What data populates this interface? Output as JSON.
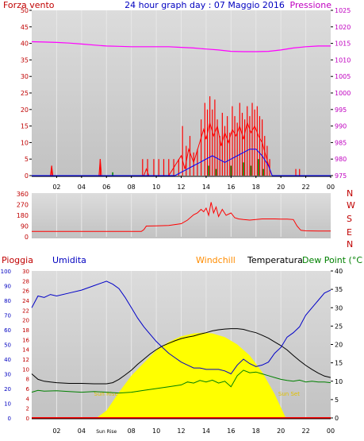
{
  "header": {
    "left_label": "Forza vento",
    "title": "24 hour graph day : 07 Maggio 2016",
    "right_label": "Pressione"
  },
  "colors": {
    "plot_bg_top": "#d8d8d8",
    "plot_bg_bottom": "#c4c4c4",
    "wind": "#ff0000",
    "gust_bar": "#ff0000",
    "wind_avg": "#0000ff",
    "wind_low": "#008000",
    "pressure": "#ff00ff",
    "direction": "#ff0000",
    "humidity": "#0000c8",
    "temperature": "#000000",
    "dew_point": "#008000",
    "sun": "#ffff00",
    "rain": "#ff0000",
    "windchill": "#ff8c00",
    "axis_red": "#c00000",
    "axis_blue": "#0000c0",
    "axis_black": "#000000",
    "title_blue": "#0000c0"
  },
  "x_axis": {
    "ticks": [
      "02",
      "04",
      "06",
      "08",
      "10",
      "12",
      "14",
      "16",
      "18",
      "20",
      "22",
      "00"
    ],
    "bottom_ticks": [
      "02",
      "04",
      "Sun Rise",
      "08",
      "10",
      "12",
      "14",
      "16",
      "18",
      "20",
      "22",
      "00"
    ],
    "range_hours": [
      0,
      24
    ]
  },
  "chart_data": [
    {
      "type": "bar",
      "name": "wind-panel",
      "title": "24 hour graph day : 07 Maggio 2016",
      "left_axis_label": "Forza vento",
      "right_axis_label": "Pressione",
      "ylim": [
        0,
        50
      ],
      "yticks": [
        0,
        5,
        10,
        15,
        20,
        25,
        30,
        35,
        40,
        45,
        50
      ],
      "y2lim": [
        975,
        1025
      ],
      "y2ticks": [
        975,
        980,
        985,
        990,
        995,
        1000,
        1005,
        1010,
        1015,
        1020,
        1025
      ],
      "gust_bars": [
        {
          "h": 1.6,
          "v": 3
        },
        {
          "h": 5.5,
          "v": 5
        },
        {
          "h": 8.9,
          "v": 5
        },
        {
          "h": 9.3,
          "v": 5
        },
        {
          "h": 9.8,
          "v": 5
        },
        {
          "h": 10.2,
          "v": 5
        },
        {
          "h": 10.6,
          "v": 5
        },
        {
          "h": 11.0,
          "v": 5
        },
        {
          "h": 11.4,
          "v": 5
        },
        {
          "h": 11.8,
          "v": 5
        },
        {
          "h": 12.1,
          "v": 15
        },
        {
          "h": 12.4,
          "v": 9
        },
        {
          "h": 12.7,
          "v": 12
        },
        {
          "h": 13.0,
          "v": 7
        },
        {
          "h": 13.3,
          "v": 8
        },
        {
          "h": 13.6,
          "v": 17
        },
        {
          "h": 13.9,
          "v": 22
        },
        {
          "h": 14.1,
          "v": 20
        },
        {
          "h": 14.3,
          "v": 24
        },
        {
          "h": 14.5,
          "v": 20
        },
        {
          "h": 14.7,
          "v": 23
        },
        {
          "h": 14.9,
          "v": 17
        },
        {
          "h": 15.1,
          "v": 12
        },
        {
          "h": 15.3,
          "v": 19
        },
        {
          "h": 15.5,
          "v": 15
        },
        {
          "h": 15.7,
          "v": 18
        },
        {
          "h": 15.9,
          "v": 13
        },
        {
          "h": 16.1,
          "v": 21
        },
        {
          "h": 16.3,
          "v": 18
        },
        {
          "h": 16.5,
          "v": 16
        },
        {
          "h": 16.7,
          "v": 22
        },
        {
          "h": 16.9,
          "v": 19
        },
        {
          "h": 17.1,
          "v": 17
        },
        {
          "h": 17.3,
          "v": 21
        },
        {
          "h": 17.5,
          "v": 18
        },
        {
          "h": 17.7,
          "v": 22
        },
        {
          "h": 17.9,
          "v": 20
        },
        {
          "h": 18.1,
          "v": 21
        },
        {
          "h": 18.3,
          "v": 18
        },
        {
          "h": 18.5,
          "v": 17
        },
        {
          "h": 18.7,
          "v": 12
        },
        {
          "h": 18.9,
          "v": 9
        },
        {
          "h": 19.1,
          "v": 5
        },
        {
          "h": 21.2,
          "v": 2
        },
        {
          "h": 21.5,
          "v": 2
        }
      ],
      "wind_line": [
        [
          0,
          0
        ],
        [
          1.5,
          0
        ],
        [
          1.6,
          3
        ],
        [
          1.7,
          0
        ],
        [
          5.4,
          0
        ],
        [
          5.5,
          5
        ],
        [
          5.6,
          0
        ],
        [
          9,
          0
        ],
        [
          9.2,
          2
        ],
        [
          9.4,
          0
        ],
        [
          11,
          0
        ],
        [
          11.5,
          3
        ],
        [
          12,
          6
        ],
        [
          12.3,
          2
        ],
        [
          12.6,
          8
        ],
        [
          13,
          4
        ],
        [
          13.4,
          9
        ],
        [
          13.8,
          14
        ],
        [
          14,
          11
        ],
        [
          14.3,
          16
        ],
        [
          14.6,
          12
        ],
        [
          14.9,
          15
        ],
        [
          15.2,
          9
        ],
        [
          15.5,
          13
        ],
        [
          15.8,
          10
        ],
        [
          16.1,
          14
        ],
        [
          16.4,
          12
        ],
        [
          16.7,
          15
        ],
        [
          17,
          11
        ],
        [
          17.3,
          16
        ],
        [
          17.6,
          13
        ],
        [
          17.9,
          15
        ],
        [
          18.2,
          12
        ],
        [
          18.5,
          10
        ],
        [
          18.8,
          6
        ],
        [
          19.1,
          2
        ],
        [
          19.3,
          0
        ],
        [
          24,
          0
        ]
      ],
      "wind_avg_line": [
        [
          0,
          0
        ],
        [
          11.5,
          0
        ],
        [
          12,
          1
        ],
        [
          12.5,
          2
        ],
        [
          13,
          3
        ],
        [
          13.5,
          4
        ],
        [
          14,
          5
        ],
        [
          14.5,
          6
        ],
        [
          15,
          5
        ],
        [
          15.5,
          4
        ],
        [
          16,
          5
        ],
        [
          16.5,
          6
        ],
        [
          17,
          7
        ],
        [
          17.5,
          8
        ],
        [
          18,
          8
        ],
        [
          18.5,
          6
        ],
        [
          19,
          3
        ],
        [
          19.3,
          0
        ],
        [
          24,
          0
        ]
      ],
      "wind_low_bars": [
        {
          "h": 6.5,
          "v": 1
        },
        {
          "h": 14.2,
          "v": 3
        },
        {
          "h": 14.8,
          "v": 2
        },
        {
          "h": 16.0,
          "v": 3
        },
        {
          "h": 17.0,
          "v": 4
        },
        {
          "h": 17.6,
          "v": 3
        },
        {
          "h": 18.2,
          "v": 5
        },
        {
          "h": 18.6,
          "v": 2
        }
      ],
      "pressure": [
        [
          0,
          1015.5
        ],
        [
          1,
          1015.4
        ],
        [
          2,
          1015.3
        ],
        [
          3,
          1015.1
        ],
        [
          4,
          1014.8
        ],
        [
          5,
          1014.5
        ],
        [
          6,
          1014.2
        ],
        [
          7,
          1014.1
        ],
        [
          8,
          1014.0
        ],
        [
          9,
          1014.0
        ],
        [
          10,
          1014.0
        ],
        [
          11,
          1014.0
        ],
        [
          12,
          1013.8
        ],
        [
          13,
          1013.6
        ],
        [
          14,
          1013.3
        ],
        [
          15,
          1013.0
        ],
        [
          16,
          1012.6
        ],
        [
          17,
          1012.5
        ],
        [
          18,
          1012.5
        ],
        [
          19,
          1012.6
        ],
        [
          20,
          1013.0
        ],
        [
          21,
          1013.6
        ],
        [
          22,
          1014.0
        ],
        [
          23,
          1014.2
        ],
        [
          24,
          1014.2
        ]
      ]
    },
    {
      "type": "line",
      "name": "direction-panel",
      "right_axis_letters": [
        "N",
        "W",
        "S",
        "E",
        "N"
      ],
      "ylim": [
        0,
        360
      ],
      "yticks": [
        0,
        90,
        180,
        270,
        360
      ],
      "direction": [
        [
          0,
          45
        ],
        [
          8.8,
          45
        ],
        [
          9,
          60
        ],
        [
          9.2,
          90
        ],
        [
          10,
          92
        ],
        [
          11,
          95
        ],
        [
          12,
          110
        ],
        [
          12.5,
          140
        ],
        [
          13,
          185
        ],
        [
          13.3,
          200
        ],
        [
          13.6,
          230
        ],
        [
          13.8,
          210
        ],
        [
          14,
          240
        ],
        [
          14.2,
          180
        ],
        [
          14.4,
          290
        ],
        [
          14.6,
          200
        ],
        [
          14.8,
          250
        ],
        [
          15,
          170
        ],
        [
          15.3,
          230
        ],
        [
          15.6,
          180
        ],
        [
          16,
          200
        ],
        [
          16.3,
          160
        ],
        [
          16.6,
          150
        ],
        [
          17,
          145
        ],
        [
          17.5,
          140
        ],
        [
          18,
          145
        ],
        [
          18.5,
          150
        ],
        [
          19,
          150
        ],
        [
          19.5,
          150
        ],
        [
          20,
          148
        ],
        [
          20.5,
          148
        ],
        [
          21,
          145
        ],
        [
          21.3,
          90
        ],
        [
          21.6,
          55
        ],
        [
          22,
          50
        ],
        [
          23,
          48
        ],
        [
          24,
          48
        ]
      ]
    },
    {
      "type": "line",
      "name": "temperature-panel",
      "labels": {
        "rain": "Pioggia",
        "humidity": "Umidita",
        "windchill": "Windchill",
        "temperature": "Temperatura",
        "dew_point": "Dew Point (°C"
      },
      "humidity_ticks": [
        0,
        10,
        20,
        30,
        40,
        50,
        60,
        70,
        80,
        90,
        100
      ],
      "rain_ticks": [
        0,
        2,
        4,
        6,
        8,
        10,
        12,
        14,
        16,
        18,
        20,
        22,
        24,
        26,
        28,
        30
      ],
      "temp_ticks": [
        0,
        5,
        10,
        15,
        20,
        25,
        30,
        35,
        40
      ],
      "sun_labels": {
        "rise": "Sun Rise",
        "set": "Sun Set"
      },
      "sunrise_h": 5.2,
      "sunset_h": 20.4,
      "humidity": [
        [
          0,
          75
        ],
        [
          0.5,
          83
        ],
        [
          1,
          82
        ],
        [
          1.5,
          84
        ],
        [
          2,
          83
        ],
        [
          3,
          85
        ],
        [
          4,
          87
        ],
        [
          5,
          90
        ],
        [
          6,
          93
        ],
        [
          6.5,
          91
        ],
        [
          7,
          88
        ],
        [
          7.5,
          82
        ],
        [
          8,
          75
        ],
        [
          8.5,
          68
        ],
        [
          9,
          62
        ],
        [
          9.5,
          57
        ],
        [
          10,
          52
        ],
        [
          10.5,
          48
        ],
        [
          11,
          44
        ],
        [
          11.5,
          41
        ],
        [
          12,
          38
        ],
        [
          12.5,
          36
        ],
        [
          13,
          34
        ],
        [
          13.5,
          34
        ],
        [
          14,
          33
        ],
        [
          14.5,
          33
        ],
        [
          15,
          33
        ],
        [
          15.5,
          32
        ],
        [
          16,
          30
        ],
        [
          16.5,
          36
        ],
        [
          17,
          40
        ],
        [
          17.5,
          37
        ],
        [
          18,
          35
        ],
        [
          18.5,
          36
        ],
        [
          19,
          38
        ],
        [
          19.5,
          44
        ],
        [
          20,
          48
        ],
        [
          20.5,
          55
        ],
        [
          21,
          58
        ],
        [
          21.5,
          62
        ],
        [
          22,
          70
        ],
        [
          22.5,
          75
        ],
        [
          23,
          80
        ],
        [
          23.5,
          85
        ],
        [
          24,
          87
        ]
      ],
      "temperature": [
        [
          0,
          12
        ],
        [
          0.5,
          10.5
        ],
        [
          1,
          10
        ],
        [
          1.5,
          9.8
        ],
        [
          2,
          9.6
        ],
        [
          3,
          9.4
        ],
        [
          4,
          9.4
        ],
        [
          5,
          9.3
        ],
        [
          6,
          9.3
        ],
        [
          6.5,
          9.6
        ],
        [
          7,
          10.5
        ],
        [
          7.5,
          11.7
        ],
        [
          8,
          13
        ],
        [
          8.5,
          14.6
        ],
        [
          9,
          16
        ],
        [
          9.5,
          17.4
        ],
        [
          10,
          18.6
        ],
        [
          10.5,
          19.6
        ],
        [
          11,
          20.3
        ],
        [
          11.5,
          21
        ],
        [
          12,
          21.6
        ],
        [
          12.5,
          22
        ],
        [
          13,
          22.3
        ],
        [
          13.5,
          22.8
        ],
        [
          14,
          23.2
        ],
        [
          14.5,
          23.7
        ],
        [
          15,
          24
        ],
        [
          15.5,
          24.2
        ],
        [
          16,
          24.3
        ],
        [
          16.5,
          24.3
        ],
        [
          17,
          24.1
        ],
        [
          17.5,
          23.6
        ],
        [
          18,
          23.2
        ],
        [
          18.5,
          22.5
        ],
        [
          19,
          21.7
        ],
        [
          19.5,
          20.7
        ],
        [
          20,
          19.7
        ],
        [
          20.5,
          18.5
        ],
        [
          21,
          17
        ],
        [
          21.5,
          15.6
        ],
        [
          22,
          14.3
        ],
        [
          22.5,
          13.2
        ],
        [
          23,
          12.2
        ],
        [
          23.5,
          11.4
        ],
        [
          24,
          11
        ]
      ],
      "dew_point": [
        [
          0,
          7
        ],
        [
          0.5,
          7.5
        ],
        [
          1,
          7.3
        ],
        [
          2,
          7.4
        ],
        [
          3,
          7.2
        ],
        [
          4,
          7.0
        ],
        [
          5,
          7.2
        ],
        [
          6,
          7.0
        ],
        [
          7,
          6.8
        ],
        [
          8,
          7.0
        ],
        [
          9,
          7.5
        ],
        [
          10,
          8.0
        ],
        [
          11,
          8.5
        ],
        [
          12,
          9.0
        ],
        [
          12.5,
          9.8
        ],
        [
          13,
          9.5
        ],
        [
          13.5,
          10.2
        ],
        [
          14,
          9.8
        ],
        [
          14.5,
          10.3
        ],
        [
          15,
          9.5
        ],
        [
          15.5,
          10.0
        ],
        [
          16,
          8.5
        ],
        [
          16.5,
          11.5
        ],
        [
          17,
          13.0
        ],
        [
          17.5,
          12.3
        ],
        [
          18,
          12.5
        ],
        [
          18.5,
          12.0
        ],
        [
          19,
          11.5
        ],
        [
          19.5,
          11.0
        ],
        [
          20,
          10.5
        ],
        [
          20.5,
          10.2
        ],
        [
          21,
          10.0
        ],
        [
          21.5,
          10.3
        ],
        [
          22,
          9.8
        ],
        [
          22.5,
          10.0
        ],
        [
          23,
          9.8
        ],
        [
          23.5,
          9.8
        ],
        [
          24,
          9.6
        ]
      ],
      "sun_curve": [
        [
          5.2,
          0
        ],
        [
          6,
          2
        ],
        [
          7,
          7
        ],
        [
          8,
          11.5
        ],
        [
          9,
          15
        ],
        [
          10,
          18.4
        ],
        [
          11,
          20.7
        ],
        [
          12,
          22.2
        ],
        [
          13,
          23
        ],
        [
          13.8,
          23.2
        ],
        [
          14.5,
          23
        ],
        [
          15.5,
          22
        ],
        [
          16.5,
          20
        ],
        [
          17.5,
          17
        ],
        [
          18.5,
          12.5
        ],
        [
          19.5,
          6.5
        ],
        [
          20.4,
          0
        ]
      ],
      "rain_total": 0
    }
  ]
}
